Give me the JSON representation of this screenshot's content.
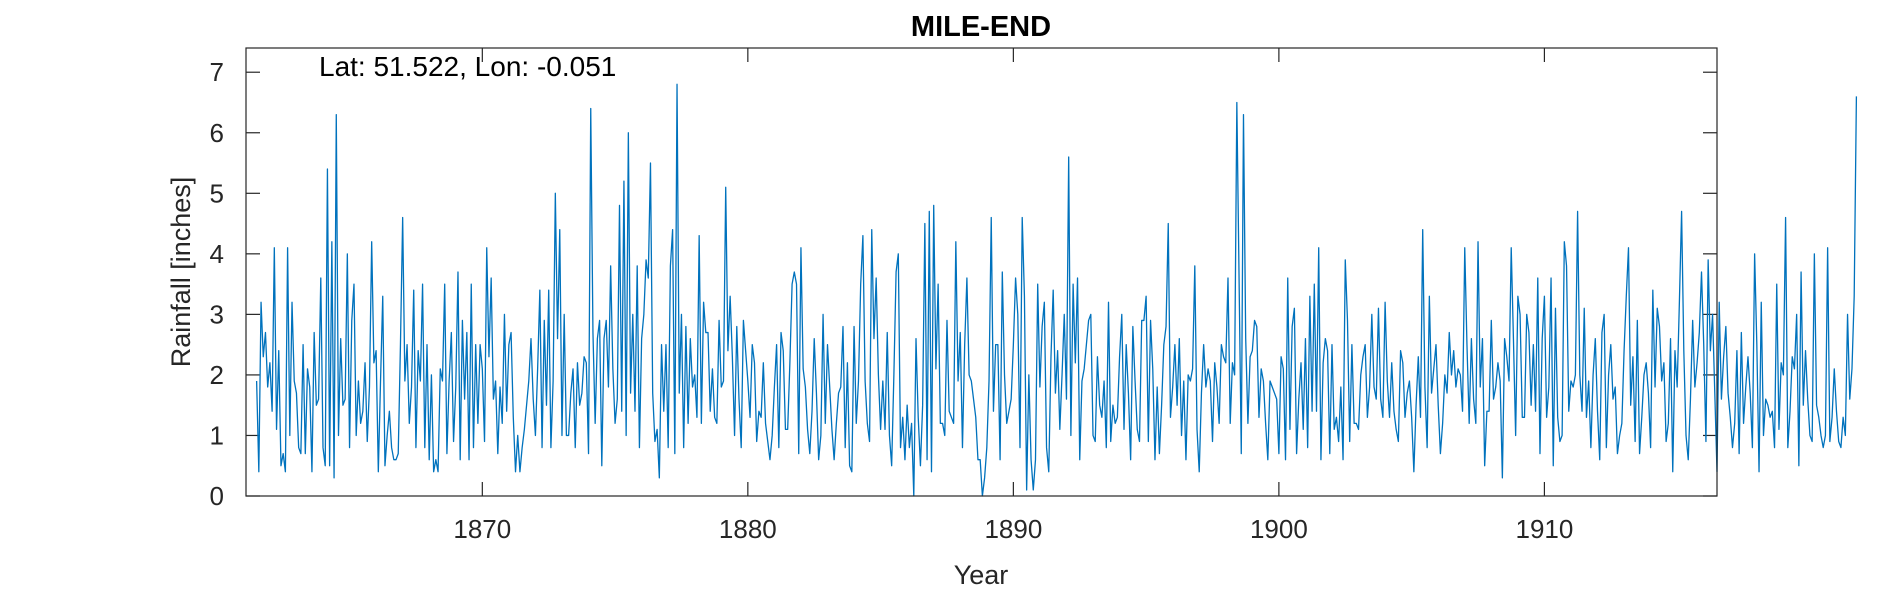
{
  "chart_data": {
    "type": "line",
    "title": "MILE-END",
    "annotation": "Lat: 51.522, Lon: -0.051",
    "xlabel": "Year",
    "ylabel": "Rainfall [inches]",
    "xlim": [
      1861.1,
      1916.5
    ],
    "ylim": [
      0,
      7.4
    ],
    "xticks": [
      1870,
      1880,
      1890,
      1900,
      1910
    ],
    "yticks": [
      0,
      1,
      2,
      3,
      4,
      5,
      6,
      7
    ],
    "grid": false,
    "legend": "none",
    "line_color": "#0072BD",
    "series": [
      {
        "x_start": 1861.5,
        "step": 0.0833333,
        "values": [
          1.9,
          0.4,
          3.2,
          2.3,
          2.7,
          1.8,
          2.2,
          1.4,
          4.1,
          1.1,
          2.4,
          0.5,
          0.7,
          0.4,
          4.1,
          1.0,
          3.2,
          1.9,
          1.7,
          0.8,
          0.7,
          2.5,
          0.7,
          2.1,
          1.8,
          0.4,
          2.7,
          1.5,
          1.6,
          3.6,
          0.8,
          0.5,
          5.4,
          0.5,
          4.2,
          0.3,
          6.3,
          1.0,
          2.6,
          1.5,
          1.6,
          4.0,
          0.8,
          2.9,
          3.5,
          1.0,
          1.9,
          1.2,
          1.4,
          2.2,
          0.9,
          1.8,
          4.2,
          2.2,
          2.4,
          0.4,
          1.9,
          3.3,
          0.5,
          1.0,
          1.4,
          0.8,
          0.6,
          0.6,
          0.7,
          2.5,
          4.6,
          1.9,
          2.5,
          1.2,
          1.8,
          3.4,
          0.8,
          2.4,
          1.9,
          3.5,
          0.8,
          2.5,
          0.6,
          2.0,
          0.4,
          0.6,
          0.4,
          2.1,
          1.9,
          3.5,
          0.7,
          1.9,
          2.7,
          0.9,
          1.8,
          3.7,
          0.6,
          2.9,
          1.6,
          2.7,
          0.6,
          3.5,
          0.8,
          2.5,
          1.2,
          2.5,
          2.1,
          0.9,
          4.1,
          2.3,
          3.6,
          1.6,
          1.9,
          0.7,
          1.8,
          1.2,
          3.0,
          1.4,
          2.5,
          2.7,
          1.3,
          0.4,
          1.0,
          0.4,
          0.8,
          1.1,
          1.5,
          1.9,
          2.6,
          1.6,
          1.0,
          2.1,
          3.4,
          0.8,
          2.9,
          1.5,
          3.4,
          0.8,
          1.9,
          5.0,
          2.6,
          4.4,
          1.0,
          3.0,
          1.0,
          1.0,
          1.7,
          2.1,
          0.8,
          2.2,
          1.5,
          1.7,
          2.3,
          2.2,
          0.7,
          6.4,
          2.7,
          1.2,
          2.6,
          2.9,
          0.5,
          2.6,
          2.9,
          1.8,
          3.8,
          2.1,
          1.2,
          1.6,
          4.8,
          1.4,
          5.2,
          1.0,
          6.0,
          1.7,
          3.0,
          1.4,
          3.8,
          0.8,
          2.6,
          3.0,
          3.9,
          3.6,
          5.5,
          1.7,
          0.9,
          1.1,
          0.3,
          2.5,
          1.4,
          2.5,
          0.8,
          3.8,
          4.4,
          0.7,
          6.8,
          1.7,
          3.0,
          0.8,
          2.8,
          1.2,
          2.6,
          1.8,
          2.0,
          1.3,
          4.3,
          1.2,
          3.2,
          2.7,
          2.7,
          1.4,
          2.1,
          1.3,
          1.2,
          2.9,
          1.8,
          1.9,
          5.1,
          2.4,
          3.3,
          2.3,
          1.0,
          2.8,
          1.6,
          0.8,
          2.9,
          2.4,
          1.9,
          1.3,
          2.5,
          2.2,
          0.9,
          1.4,
          1.3,
          2.2,
          1.2,
          0.9,
          0.6,
          1.0,
          1.8,
          2.5,
          0.8,
          2.7,
          2.4,
          1.1,
          1.1,
          2.2,
          3.5,
          3.7,
          3.5,
          0.7,
          4.1,
          2.1,
          1.8,
          1.1,
          0.7,
          1.4,
          2.6,
          1.7,
          0.6,
          1.0,
          3.0,
          1.2,
          2.5,
          1.8,
          1.1,
          0.6,
          1.2,
          1.7,
          1.8,
          2.8,
          0.8,
          2.2,
          0.5,
          0.4,
          2.8,
          1.2,
          1.9,
          3.5,
          4.3,
          1.9,
          1.2,
          0.9,
          4.4,
          2.6,
          3.6,
          2.0,
          1.1,
          1.9,
          1.1,
          2.7,
          1.0,
          0.5,
          2.0,
          3.7,
          4.0,
          0.8,
          1.3,
          0.6,
          1.5,
          0.8,
          1.2,
          0.0,
          2.6,
          1.3,
          0.5,
          1.5,
          4.5,
          0.6,
          4.7,
          0.4,
          4.8,
          2.1,
          3.5,
          1.2,
          1.2,
          1.0,
          2.9,
          1.4,
          1.3,
          1.2,
          4.2,
          1.9,
          2.7,
          0.8,
          2.5,
          3.6,
          2.0,
          1.9,
          1.6,
          1.3,
          0.6,
          0.6,
          0.0,
          0.3,
          0.8,
          1.9,
          4.6,
          1.4,
          2.5,
          2.5,
          0.6,
          3.7,
          2.0,
          1.2,
          1.4,
          1.6,
          2.5,
          3.6,
          3.0,
          0.8,
          4.6,
          3.3,
          0.1,
          2.0,
          0.6,
          0.1,
          0.6,
          3.5,
          1.8,
          2.8,
          3.2,
          0.8,
          0.4,
          2.3,
          3.4,
          1.7,
          2.4,
          1.1,
          2.0,
          3.0,
          1.6,
          5.6,
          1.0,
          3.5,
          2.2,
          3.6,
          0.6,
          1.9,
          2.1,
          2.5,
          2.9,
          3.0,
          1.0,
          0.9,
          2.3,
          1.5,
          1.3,
          1.9,
          0.8,
          3.2,
          0.9,
          1.5,
          1.2,
          1.3,
          2.3,
          3.0,
          1.1,
          2.5,
          1.7,
          0.6,
          2.8,
          1.9,
          1.1,
          0.9,
          2.9,
          2.9,
          3.3,
          0.9,
          2.9,
          2.1,
          0.6,
          1.8,
          0.7,
          1.5,
          2.5,
          2.8,
          4.5,
          1.3,
          1.8,
          2.5,
          1.5,
          2.6,
          1.0,
          1.9,
          0.6,
          2.0,
          1.9,
          2.1,
          3.8,
          1.1,
          0.4,
          1.7,
          2.5,
          1.8,
          2.1,
          1.9,
          0.9,
          2.2,
          1.8,
          1.2,
          2.5,
          2.3,
          2.2,
          3.6,
          1.2,
          2.2,
          2.0,
          6.5,
          3.6,
          0.7,
          6.3,
          2.6,
          1.2,
          2.3,
          2.4,
          2.9,
          2.8,
          1.3,
          2.1,
          1.9,
          1.2,
          0.6,
          1.9,
          1.8,
          1.7,
          1.6,
          0.7,
          2.3,
          2.1,
          0.6,
          3.6,
          1.1,
          2.8,
          3.1,
          0.7,
          1.6,
          2.2,
          1.1,
          2.6,
          0.8,
          3.3,
          1.4,
          3.5,
          1.4,
          4.1,
          0.6,
          2.2,
          2.6,
          2.4,
          0.7,
          2.5,
          1.1,
          1.3,
          0.9,
          1.8,
          0.6,
          3.9,
          2.9,
          0.9,
          2.5,
          1.2,
          1.2,
          1.1,
          2.0,
          2.3,
          2.5,
          1.3,
          1.8,
          3.0,
          1.8,
          1.6,
          3.1,
          1.6,
          1.3,
          3.2,
          1.9,
          1.3,
          2.2,
          1.4,
          1.1,
          0.9,
          2.4,
          2.2,
          1.3,
          1.7,
          1.9,
          1.3,
          0.4,
          1.5,
          2.3,
          1.3,
          4.4,
          1.8,
          0.8,
          3.3,
          1.7,
          2.1,
          2.5,
          1.5,
          0.7,
          1.2,
          2.0,
          1.7,
          2.7,
          2.0,
          2.4,
          1.8,
          2.1,
          2.0,
          1.4,
          4.1,
          2.5,
          1.2,
          2.6,
          1.6,
          1.2,
          4.2,
          1.8,
          2.6,
          0.5,
          1.4,
          1.4,
          2.9,
          1.6,
          1.8,
          2.2,
          1.9,
          0.3,
          2.6,
          2.3,
          1.9,
          4.1,
          2.6,
          1.0,
          3.3,
          3.0,
          1.3,
          1.3,
          3.0,
          2.7,
          1.5,
          2.5,
          1.4,
          3.6,
          0.7,
          2.6,
          3.3,
          1.3,
          1.8,
          3.6,
          0.5,
          3.1,
          1.3,
          0.9,
          1.0,
          4.2,
          3.8,
          1.4,
          1.9,
          1.8,
          2.0,
          4.7,
          2.0,
          1.4,
          3.1,
          1.3,
          1.9,
          0.8,
          2.0,
          2.6,
          1.4,
          0.6,
          2.7,
          3.0,
          0.8,
          2.0,
          2.5,
          1.6,
          1.8,
          0.7,
          1.0,
          1.2,
          2.4,
          3.3,
          4.1,
          1.5,
          2.3,
          0.9,
          2.9,
          0.7,
          1.3,
          2.0,
          2.2,
          1.7,
          0.8,
          3.4,
          1.8,
          3.1,
          2.8,
          1.9,
          2.2,
          0.9,
          1.2,
          2.6,
          0.4,
          2.4,
          1.8,
          3.2,
          4.7,
          2.4,
          1.0,
          0.6,
          1.6,
          2.9,
          1.8,
          2.2,
          2.7,
          3.7,
          2.5,
          0.9,
          3.9,
          2.4,
          3.0,
          1.7,
          0.4,
          3.2,
          1.6,
          2.3,
          2.8,
          1.7,
          1.3,
          0.8,
          1.2,
          2.4,
          0.7,
          2.7,
          1.2,
          1.8,
          2.3,
          1.7,
          0.8,
          4.0,
          2.5,
          0.4,
          3.2,
          1.0,
          1.6,
          1.5,
          1.3,
          1.4,
          0.8,
          3.5,
          1.1,
          2.2,
          2.0,
          4.6,
          0.8,
          1.4,
          2.3,
          2.1,
          3.0,
          0.5,
          3.7,
          1.5,
          2.4,
          1.6,
          1.0,
          0.9,
          4.0,
          1.5,
          1.3,
          1.0,
          0.8,
          1.0,
          4.1,
          0.9,
          1.3,
          2.1,
          1.4,
          0.9,
          0.8,
          1.3,
          1.0,
          3.0,
          1.6,
          2.1,
          3.3,
          6.6
        ]
      }
    ]
  }
}
